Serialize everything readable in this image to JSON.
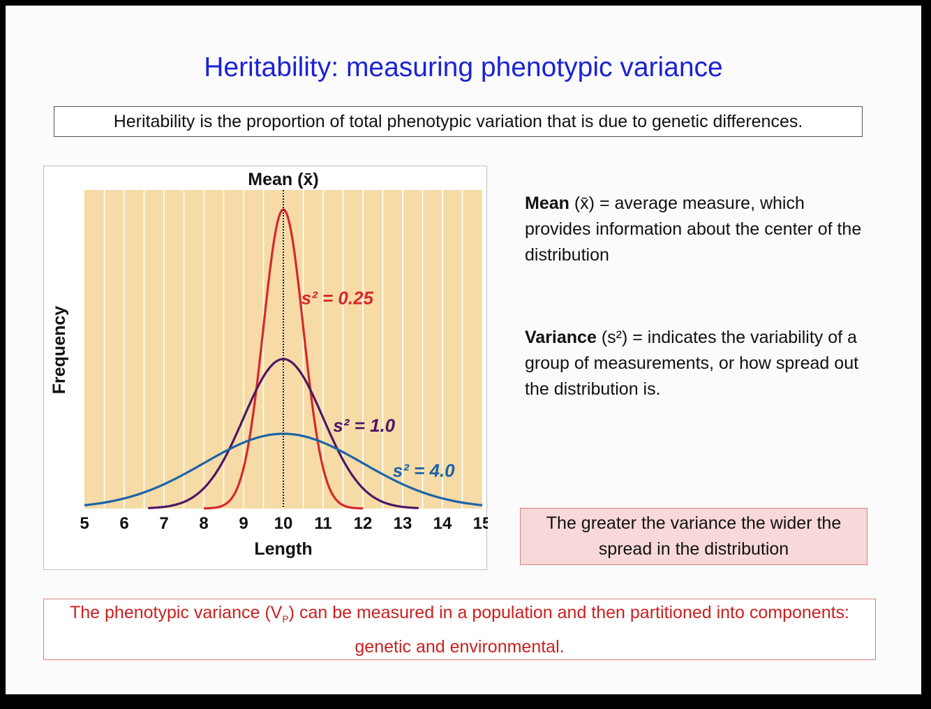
{
  "slide": {
    "title": "Heritability: measuring phenotypic variance",
    "definition": "Heritability is the proportion of total phenotypic variation that is due to genetic differences.",
    "mean_para": {
      "term": "Mean",
      "symbol": " (x̄)",
      "text": " = average measure, which provides information about the center of the distribution"
    },
    "variance_para": {
      "term": "Variance",
      "symbol": " (s²)",
      "text": " = indicates the variability of a group of measurements, or how spread out the distribution is."
    },
    "note": "The greater the variance the wider the spread in the distribution",
    "bottom": {
      "part1": "The phenotypic variance (V",
      "sub": "P",
      "part2": ") can be measured in a population and then partitioned into components: genetic and environmental."
    }
  },
  "colors": {
    "plot_bg": "#f6dba6",
    "grid": "#ffffff",
    "series_0": "#d6282c",
    "series_1": "#4b1766",
    "series_2": "#1b63a8",
    "title": "#1a22d6",
    "bottom_text": "#cc1f1f"
  },
  "chart_data": {
    "type": "line",
    "title": "Mean (x̄)",
    "xlabel": "Length",
    "ylabel": "Frequency",
    "xlim": [
      5,
      15
    ],
    "xticks": [
      5,
      6,
      7,
      8,
      9,
      10,
      11,
      12,
      13,
      14,
      15
    ],
    "mean": 10,
    "grid": true,
    "series": [
      {
        "name": "s² = 0.25",
        "mean": 10,
        "variance": 0.25
      },
      {
        "name": "s² = 1.0",
        "mean": 10,
        "variance": 1.0
      },
      {
        "name": "s² = 4.0",
        "mean": 10,
        "variance": 4.0
      }
    ]
  }
}
